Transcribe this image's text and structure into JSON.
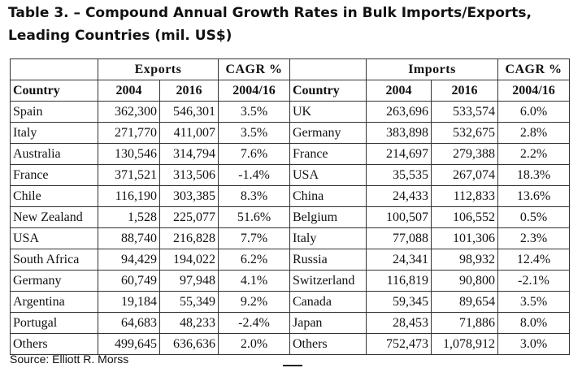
{
  "title": "Table 3. – Compound Annual Growth Rates in Bulk Imports/Exports, Leading Countries (mil. US$)",
  "headers": {
    "exports_group": "Exports",
    "imports_group": "Imports",
    "cagr_group": "CAGR %",
    "country": "Country",
    "year_a": "2004",
    "year_b": "2016",
    "cagr_period": "2004/16"
  },
  "exports": [
    {
      "country": "Spain",
      "v2004": "362,300",
      "v2016": "546,301",
      "cagr": "3.5%"
    },
    {
      "country": "Italy",
      "v2004": "271,770",
      "v2016": "411,007",
      "cagr": "3.5%"
    },
    {
      "country": "Australia",
      "v2004": "130,546",
      "v2016": "314,794",
      "cagr": "7.6%"
    },
    {
      "country": "France",
      "v2004": "371,521",
      "v2016": "313,506",
      "cagr": "-1.4%"
    },
    {
      "country": "Chile",
      "v2004": "116,190",
      "v2016": "303,385",
      "cagr": "8.3%"
    },
    {
      "country": "New Zealand",
      "v2004": "1,528",
      "v2016": "225,077",
      "cagr": "51.6%"
    },
    {
      "country": "USA",
      "v2004": "88,740",
      "v2016": "216,828",
      "cagr": "7.7%"
    },
    {
      "country": "South Africa",
      "v2004": "94,429",
      "v2016": "194,022",
      "cagr": "6.2%"
    },
    {
      "country": "Germany",
      "v2004": "60,749",
      "v2016": "97,948",
      "cagr": "4.1%"
    },
    {
      "country": "Argentina",
      "v2004": "19,184",
      "v2016": "55,349",
      "cagr": "9.2%"
    },
    {
      "country": "Portugal",
      "v2004": "64,683",
      "v2016": "48,233",
      "cagr": "-2.4%"
    },
    {
      "country": "Others",
      "v2004": "499,645",
      "v2016": "636,636",
      "cagr": "2.0%"
    }
  ],
  "imports": [
    {
      "country": "UK",
      "v2004": "263,696",
      "v2016": "533,574",
      "cagr": "6.0%"
    },
    {
      "country": "Germany",
      "v2004": "383,898",
      "v2016": "532,675",
      "cagr": "2.8%"
    },
    {
      "country": "France",
      "v2004": "214,697",
      "v2016": "279,388",
      "cagr": "2.2%"
    },
    {
      "country": "USA",
      "v2004": "35,535",
      "v2016": "267,074",
      "cagr": "18.3%"
    },
    {
      "country": "China",
      "v2004": "24,433",
      "v2016": "112,833",
      "cagr": "13.6%"
    },
    {
      "country": "Belgium",
      "v2004": "100,507",
      "v2016": "106,552",
      "cagr": "0.5%"
    },
    {
      "country": "Italy",
      "v2004": "77,088",
      "v2016": "101,306",
      "cagr": "2.3%"
    },
    {
      "country": "Russia",
      "v2004": "24,341",
      "v2016": "98,932",
      "cagr": "12.4%"
    },
    {
      "country": "Switzerland",
      "v2004": "116,819",
      "v2016": "90,800",
      "cagr": "-2.1%"
    },
    {
      "country": "Canada",
      "v2004": "59,345",
      "v2016": "89,654",
      "cagr": "3.5%"
    },
    {
      "country": "Japan",
      "v2004": "28,453",
      "v2016": "71,886",
      "cagr": "8.0%"
    },
    {
      "country": "Others",
      "v2004": "752,473",
      "v2016": "1,078,912",
      "cagr": "3.0%"
    }
  ],
  "source": "Source: Elliott R. Morss"
}
